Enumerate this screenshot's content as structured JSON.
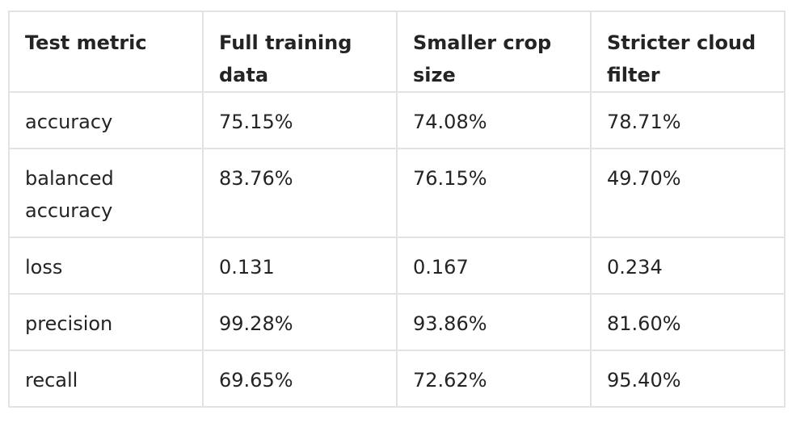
{
  "table": {
    "headers": [
      "Test metric",
      "Full training data",
      "Smaller crop size",
      "Stricter cloud filter"
    ],
    "rows": [
      [
        "accuracy",
        "75.15%",
        "74.08%",
        "78.71%"
      ],
      [
        "balanced accuracy",
        "83.76%",
        "76.15%",
        "49.70%"
      ],
      [
        "loss",
        "0.131",
        "0.167",
        "0.234"
      ],
      [
        "precision",
        "99.28%",
        "93.86%",
        "81.60%"
      ],
      [
        "recall",
        "69.65%",
        "72.62%",
        "95.40%"
      ]
    ]
  }
}
